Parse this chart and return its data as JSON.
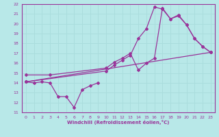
{
  "xlabel": "Windchill (Refroidissement éolien,°C)",
  "bg_color": "#b8e8e8",
  "line_color": "#993399",
  "grid_color": "#aadddd",
  "xlim": [
    -0.5,
    23.5
  ],
  "ylim": [
    11,
    22
  ],
  "xticks": [
    0,
    1,
    2,
    3,
    4,
    5,
    6,
    7,
    8,
    9,
    10,
    11,
    12,
    13,
    14,
    15,
    16,
    17,
    18,
    19,
    20,
    21,
    22,
    23
  ],
  "yticks": [
    11,
    12,
    13,
    14,
    15,
    16,
    17,
    18,
    19,
    20,
    21,
    22
  ],
  "curve1_x": [
    0,
    1,
    2,
    3,
    4,
    5,
    6,
    7,
    8,
    9
  ],
  "curve1_y": [
    14.1,
    14.0,
    14.1,
    14.0,
    12.6,
    12.6,
    11.5,
    13.3,
    13.7,
    14.0
  ],
  "curve2_x": [
    0,
    3,
    10,
    11,
    12,
    13,
    14,
    15,
    16,
    17,
    18,
    19,
    20,
    21,
    22,
    23
  ],
  "curve2_y": [
    14.8,
    14.8,
    15.5,
    16.1,
    16.5,
    17.0,
    15.3,
    16.0,
    16.5,
    21.6,
    20.5,
    20.8,
    19.9,
    18.5,
    17.7,
    17.1
  ],
  "curve3_x": [
    0,
    10,
    11,
    12,
    13,
    14,
    15,
    16,
    17,
    18,
    19,
    20,
    21,
    22,
    23
  ],
  "curve3_y": [
    14.1,
    15.2,
    15.8,
    16.3,
    16.8,
    18.5,
    19.5,
    21.7,
    21.5,
    20.5,
    20.9,
    19.9,
    18.5,
    17.7,
    17.1
  ],
  "curve4_x": [
    0,
    23
  ],
  "curve4_y": [
    14.1,
    17.1
  ]
}
